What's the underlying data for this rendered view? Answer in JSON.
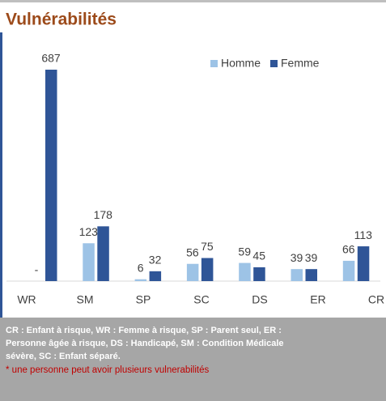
{
  "chart_data": {
    "type": "bar",
    "title": "Vulnérabilités",
    "categories": [
      "WR",
      "SM",
      "SP",
      "SC",
      "DS",
      "ER",
      "CR"
    ],
    "series": [
      {
        "name": "Homme",
        "color": "#9dc3e6",
        "values": [
          0,
          123,
          6,
          56,
          59,
          39,
          66
        ],
        "value_labels": [
          "-",
          "123",
          "6",
          "56",
          "59",
          "39",
          "66"
        ]
      },
      {
        "name": "Femme",
        "color": "#2f5597",
        "values": [
          687,
          178,
          32,
          75,
          45,
          39,
          113
        ]
      }
    ],
    "legend": "top-right",
    "footnote_lines": [
      "CR : Enfant à risque, WR : Femme à risque, SP : Parent seul, ER :",
      "Personne âgée à risque, DS : Handicapé, SM : Condition Médicale",
      "sévère, SC : Enfant séparé."
    ],
    "note": "* une personne peut avoir plusieurs vulnerabilités"
  }
}
